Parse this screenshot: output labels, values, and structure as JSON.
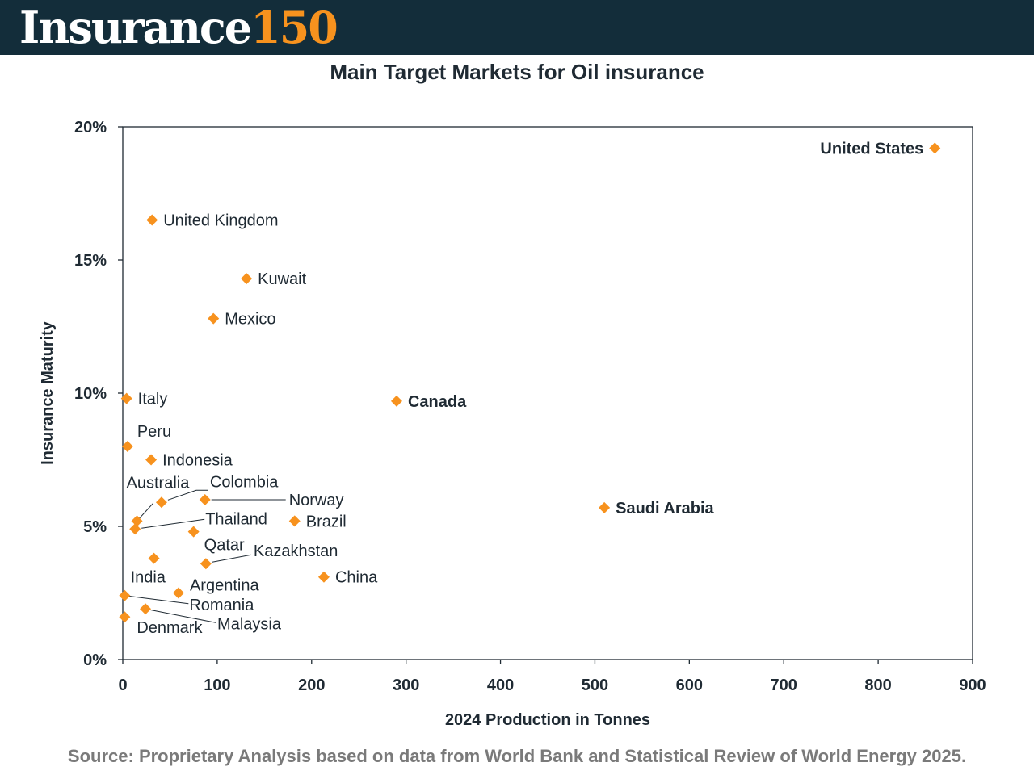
{
  "header": {
    "brand_word": "Insurance",
    "brand_number": "150",
    "brand_text_color": "#ffffff",
    "brand_number_color": "#f7921e",
    "background_color": "#132d3a"
  },
  "source_note": "Source: Proprietary Analysis based on data from World Bank and Statistical Review of World Energy 2025.",
  "colors": {
    "marker": "#f7921e",
    "axis": "#1f2a33",
    "source": "#7a7a7a"
  },
  "chart_data": {
    "type": "scatter",
    "title": "Main Target Markets for Oil insurance",
    "xlabel": "2024 Production in Tonnes",
    "ylabel": "Insurance Maturity",
    "xlim": [
      0,
      900
    ],
    "ylim": [
      0,
      20
    ],
    "x_ticks": [
      "0",
      "100",
      "200",
      "300",
      "400",
      "500",
      "600",
      "700",
      "800",
      "900"
    ],
    "y_ticks": [
      "0%",
      "5%",
      "10%",
      "15%",
      "20%"
    ],
    "grid": false,
    "legend": "none",
    "points": [
      {
        "label": "United States",
        "x": 860,
        "y": 19.2,
        "bold": true
      },
      {
        "label": "United Kingdom",
        "x": 31,
        "y": 16.5,
        "bold": false
      },
      {
        "label": "Kuwait",
        "x": 131,
        "y": 14.3,
        "bold": false
      },
      {
        "label": "Mexico",
        "x": 96,
        "y": 12.8,
        "bold": false
      },
      {
        "label": "Italy",
        "x": 4,
        "y": 9.8,
        "bold": false
      },
      {
        "label": "Canada",
        "x": 290,
        "y": 9.7,
        "bold": true
      },
      {
        "label": "Peru",
        "x": 5,
        "y": 8.0,
        "bold": false
      },
      {
        "label": "Indonesia",
        "x": 30,
        "y": 7.5,
        "bold": false
      },
      {
        "label": "Australia",
        "x": 15,
        "y": 5.2,
        "bold": false
      },
      {
        "label": "Colombia",
        "x": 41,
        "y": 5.9,
        "bold": false
      },
      {
        "label": "Norway",
        "x": 87,
        "y": 6.0,
        "bold": false
      },
      {
        "label": "Brazil",
        "x": 182,
        "y": 5.2,
        "bold": false
      },
      {
        "label": "Saudi Arabia",
        "x": 510,
        "y": 5.7,
        "bold": true
      },
      {
        "label": "Thailand",
        "x": 13,
        "y": 4.9,
        "bold": false
      },
      {
        "label": "Qatar",
        "x": 75,
        "y": 4.8,
        "bold": false
      },
      {
        "label": "India",
        "x": 33,
        "y": 3.8,
        "bold": false
      },
      {
        "label": "Kazakhstan",
        "x": 88,
        "y": 3.6,
        "bold": false
      },
      {
        "label": "China",
        "x": 213,
        "y": 3.1,
        "bold": false
      },
      {
        "label": "Argentina",
        "x": 59,
        "y": 2.5,
        "bold": false
      },
      {
        "label": "Romania",
        "x": 2,
        "y": 2.4,
        "bold": false
      },
      {
        "label": "Malaysia",
        "x": 24,
        "y": 1.9,
        "bold": false
      },
      {
        "label": "Denmark",
        "x": 2,
        "y": 1.6,
        "bold": false
      }
    ]
  }
}
